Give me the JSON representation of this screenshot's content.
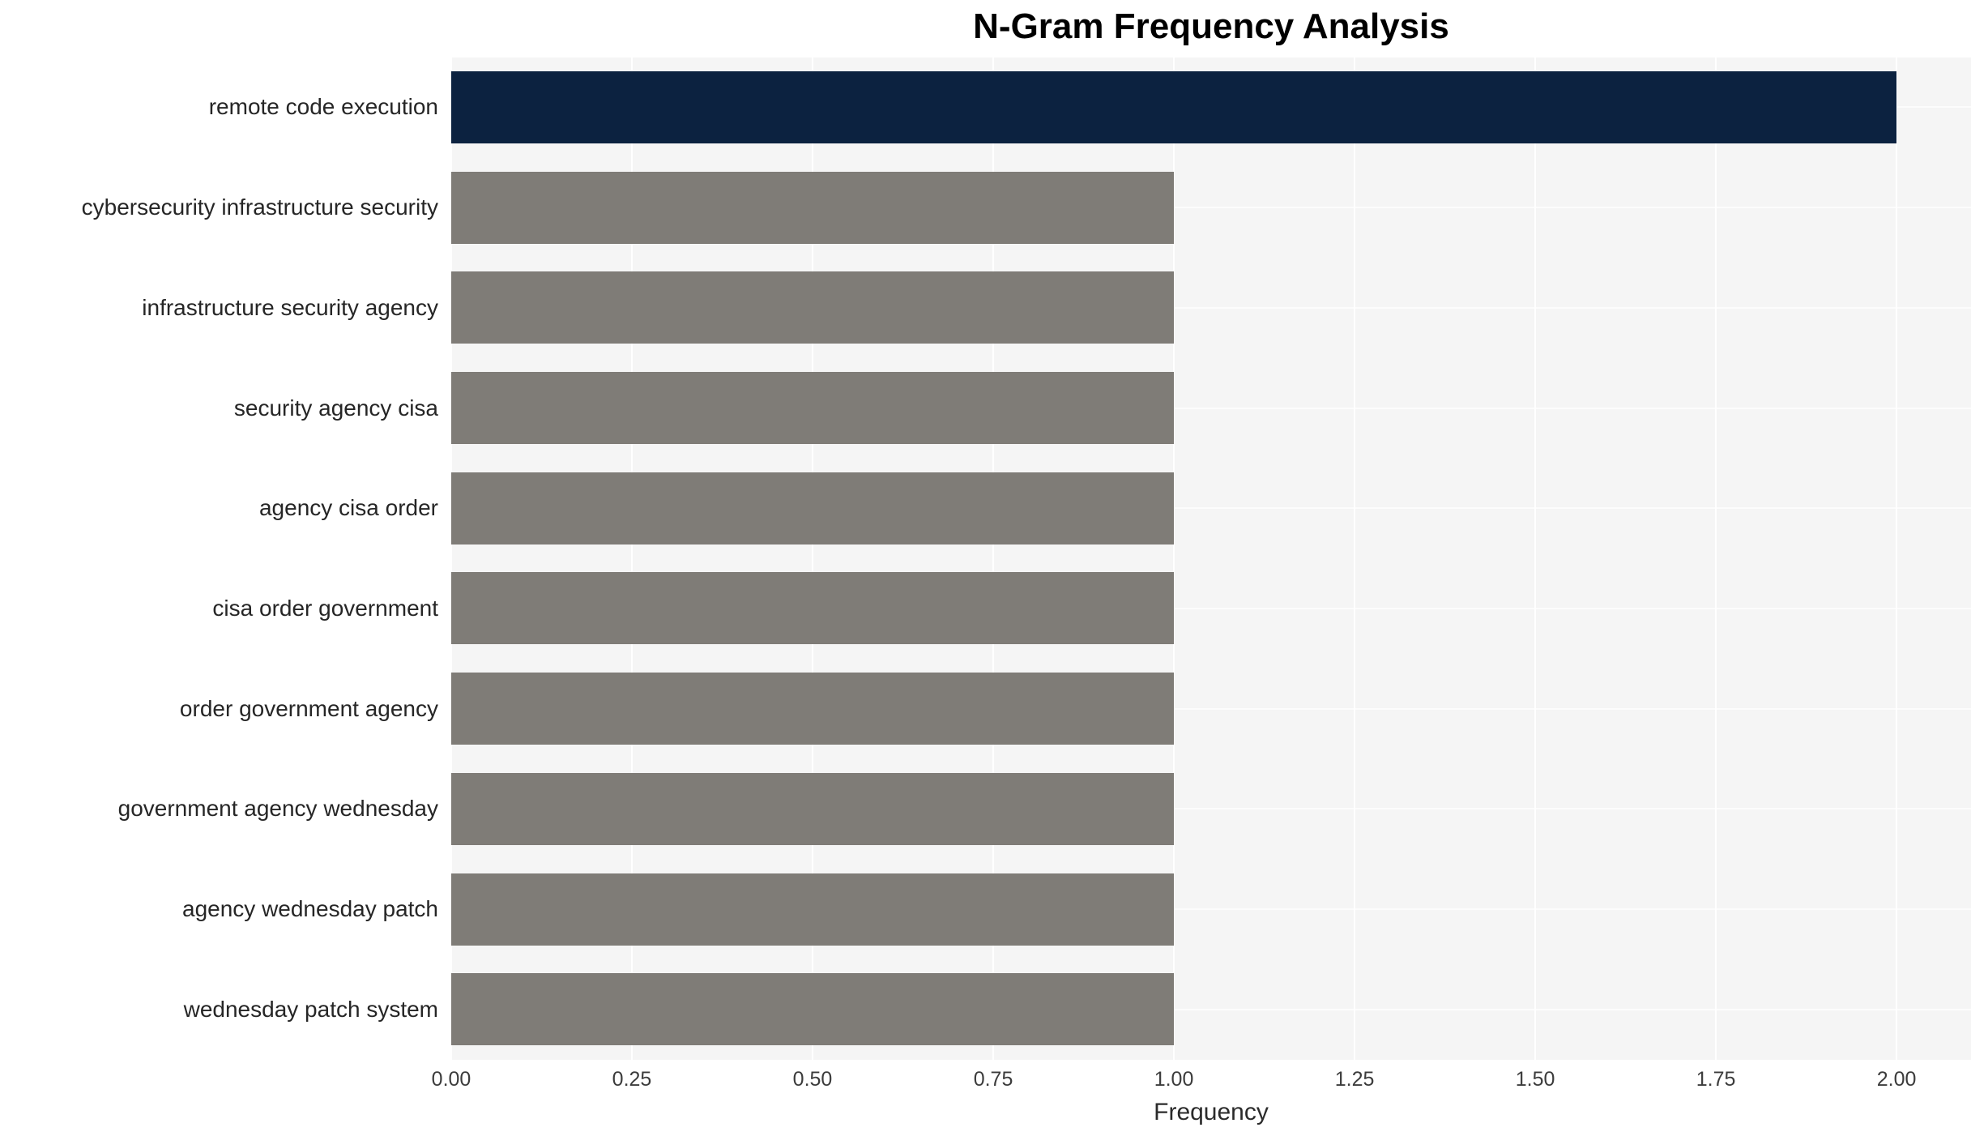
{
  "chart_data": {
    "type": "bar",
    "orientation": "horizontal",
    "title": "N-Gram Frequency Analysis",
    "xlabel": "Frequency",
    "ylabel": "",
    "categories": [
      "remote code execution",
      "cybersecurity infrastructure security",
      "infrastructure security agency",
      "security agency cisa",
      "agency cisa order",
      "cisa order government",
      "order government agency",
      "government agency wednesday",
      "agency wednesday patch",
      "wednesday patch system"
    ],
    "values": [
      2,
      1,
      1,
      1,
      1,
      1,
      1,
      1,
      1,
      1
    ],
    "xlim": [
      0,
      2.103
    ],
    "xticks": [
      0,
      0.25,
      0.5,
      0.75,
      1,
      1.25,
      1.5,
      1.75,
      2
    ],
    "xtick_labels": [
      "0.00",
      "0.25",
      "0.50",
      "0.75",
      "1.00",
      "1.25",
      "1.50",
      "1.75",
      "2.00"
    ],
    "grid": true,
    "legend": "none",
    "bar_colors": [
      "#0c2240",
      "#7f7c77",
      "#7f7c77",
      "#7f7c77",
      "#7f7c77",
      "#7f7c77",
      "#7f7c77",
      "#7f7c77",
      "#7f7c77",
      "#7f7c77"
    ],
    "colors": {
      "highlight": "#0c2240",
      "default": "#7f7c77",
      "plot_background": "#f5f5f5",
      "gridline": "#ffffff",
      "figure_background": "#ffffff"
    }
  }
}
